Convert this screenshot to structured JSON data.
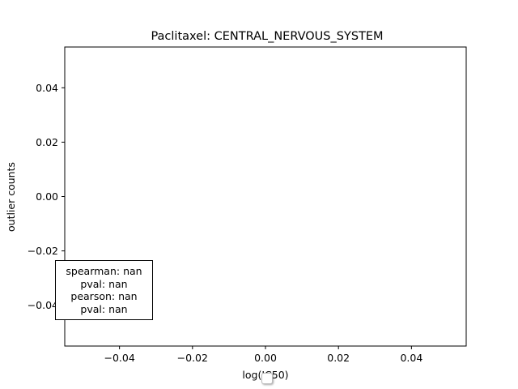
{
  "chart_data": {
    "type": "scatter",
    "title": "Paclitaxel: CENTRAL_NERVOUS_SYSTEM",
    "xlabel": "log(IC50)",
    "ylabel": "outlier counts",
    "xlim": [
      -0.055,
      0.055
    ],
    "ylim": [
      -0.055,
      0.055
    ],
    "xticks": [
      "−0.04",
      "−0.02",
      "0.00",
      "0.02",
      "0.04"
    ],
    "xtick_values": [
      -0.04,
      -0.02,
      0.0,
      0.02,
      0.04
    ],
    "yticks": [
      "0.04",
      "0.02",
      "0.00",
      "−0.02",
      "−0.04"
    ],
    "ytick_values": [
      0.04,
      0.02,
      0.0,
      -0.02,
      -0.04
    ],
    "points": [],
    "grid": false,
    "annotation": {
      "lines": [
        "spearman: nan",
        "pval: nan",
        "pearson: nan",
        "pval: nan"
      ],
      "placement": "bottom-left"
    }
  }
}
